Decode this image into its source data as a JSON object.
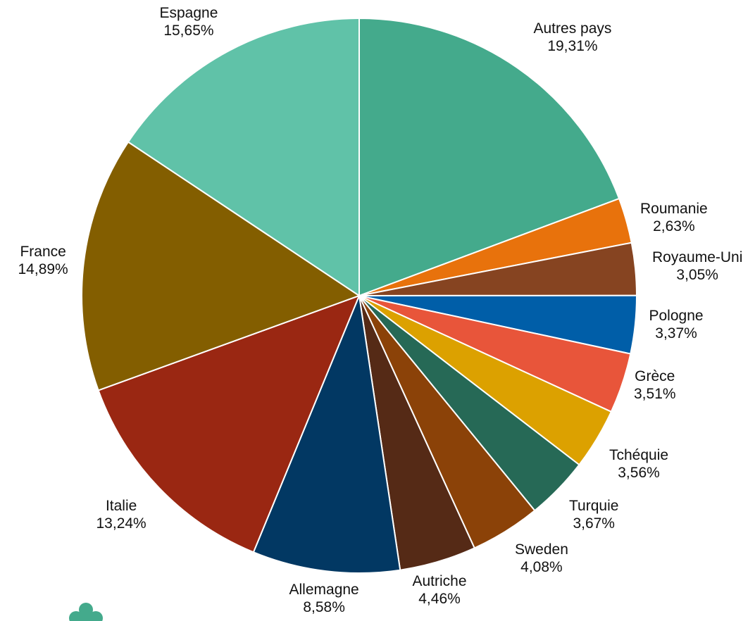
{
  "chart_data": {
    "type": "pie",
    "slices": [
      {
        "label": "Autres pays",
        "value_text": "19,31%",
        "value": 19.31,
        "color": "#44AA8C"
      },
      {
        "label": "Roumanie",
        "value_text": "2,63%",
        "value": 2.63,
        "color": "#E8720C"
      },
      {
        "label": "Royaume-Uni",
        "value_text": "3,05%",
        "value": 3.05,
        "color": "#864421"
      },
      {
        "label": "Pologne",
        "value_text": "3,37%",
        "value": 3.37,
        "color": "#005EA8"
      },
      {
        "label": "Grèce",
        "value_text": "3,51%",
        "value": 3.51,
        "color": "#E8553A"
      },
      {
        "label": "Tchéquie",
        "value_text": "3,56%",
        "value": 3.56,
        "color": "#DCA100"
      },
      {
        "label": "Turquie",
        "value_text": "3,67%",
        "value": 3.67,
        "color": "#266956"
      },
      {
        "label": "Sweden",
        "value_text": "4,08%",
        "value": 4.08,
        "color": "#8B4208"
      },
      {
        "label": "Autriche",
        "value_text": "4,46%",
        "value": 4.46,
        "color": "#552A16"
      },
      {
        "label": "Allemagne",
        "value_text": "8,58%",
        "value": 8.58,
        "color": "#023863"
      },
      {
        "label": "Italie",
        "value_text": "13,24%",
        "value": 13.24,
        "color": "#9A2712"
      },
      {
        "label": "France",
        "value_text": "14,89%",
        "value": 14.89,
        "color": "#835E00"
      },
      {
        "label": "Espagne",
        "value_text": "15,65%",
        "value": 15.65,
        "color": "#60C2A8"
      }
    ],
    "start": "12 o'clock",
    "direction": "clockwise",
    "legend": "none"
  },
  "logo": {
    "icon": "tree-logo-icon",
    "color": "#44AA8C"
  }
}
